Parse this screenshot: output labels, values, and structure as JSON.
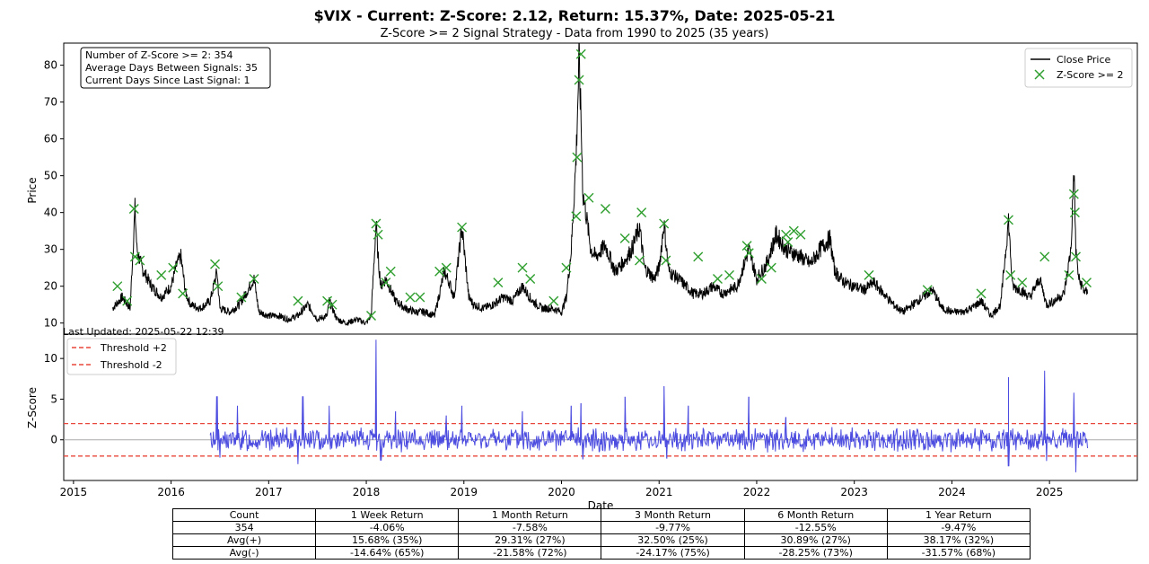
{
  "title": "$VIX - Current: Z-Score: 2.12, Return: 15.37%, Date: 2025-05-21",
  "subtitle": "Z-Score >= 2 Signal Strategy - Data from 1990 to 2025 (35 years)",
  "stats_box": [
    "Number of Z-Score >= 2: 354",
    "Average Days Between Signals: 35",
    "Current Days Since Last Signal: 1"
  ],
  "last_updated": "Last Updated: 2025-05-22 12:39",
  "chart_data": [
    {
      "type": "line",
      "ylabel": "Price",
      "ylim": [
        7,
        86
      ],
      "yticks": [
        10,
        20,
        30,
        40,
        50,
        60,
        70,
        80
      ],
      "x_range": [
        2014.9,
        2025.9
      ],
      "legend": {
        "placement": "top-right",
        "entries": [
          "Close Price",
          "Z-Score >= 2"
        ]
      },
      "series": [
        {
          "name": "Close Price",
          "color": "#000000",
          "x": [
            2015.4,
            2015.5,
            2015.58,
            2015.63,
            2015.65,
            2015.7,
            2015.8,
            2015.9,
            2016.0,
            2016.06,
            2016.1,
            2016.15,
            2016.2,
            2016.3,
            2016.4,
            2016.47,
            2016.5,
            2016.6,
            2016.7,
            2016.85,
            2016.9,
            2017.0,
            2017.1,
            2017.2,
            2017.3,
            2017.4,
            2017.5,
            2017.6,
            2017.62,
            2017.7,
            2017.8,
            2017.9,
            2018.0,
            2018.05,
            2018.1,
            2018.12,
            2018.15,
            2018.2,
            2018.3,
            2018.4,
            2018.5,
            2018.6,
            2018.7,
            2018.8,
            2018.85,
            2018.9,
            2018.98,
            2019.05,
            2019.1,
            2019.2,
            2019.3,
            2019.4,
            2019.5,
            2019.6,
            2019.7,
            2019.8,
            2019.9,
            2020.0,
            2020.05,
            2020.1,
            2020.15,
            2020.18,
            2020.2,
            2020.22,
            2020.25,
            2020.3,
            2020.35,
            2020.45,
            2020.55,
            2020.65,
            2020.72,
            2020.8,
            2020.85,
            2020.95,
            2021.0,
            2021.05,
            2021.1,
            2021.2,
            2021.35,
            2021.45,
            2021.55,
            2021.65,
            2021.8,
            2021.92,
            2022.0,
            2022.1,
            2022.2,
            2022.3,
            2022.45,
            2022.55,
            2022.65,
            2022.75,
            2022.8,
            2022.9,
            2023.0,
            2023.1,
            2023.2,
            2023.3,
            2023.4,
            2023.5,
            2023.6,
            2023.7,
            2023.8,
            2023.9,
            2024.0,
            2024.1,
            2024.2,
            2024.3,
            2024.4,
            2024.5,
            2024.58,
            2024.62,
            2024.7,
            2024.8,
            2024.9,
            2024.97,
            2025.05,
            2025.15,
            2025.22,
            2025.25,
            2025.27,
            2025.3,
            2025.35,
            2025.39
          ],
          "y": [
            14,
            17,
            14,
            41,
            30,
            25,
            20,
            17,
            20,
            26,
            28,
            18,
            15,
            14,
            16,
            24,
            14,
            13,
            15,
            22,
            13,
            12,
            12,
            11,
            12,
            15,
            11,
            12,
            16,
            11,
            10,
            11,
            10,
            12,
            37,
            28,
            20,
            22,
            16,
            14,
            13,
            13,
            12,
            24,
            21,
            17,
            36,
            17,
            15,
            14,
            15,
            17,
            16,
            20,
            16,
            14,
            14,
            13,
            17,
            30,
            55,
            82,
            65,
            45,
            40,
            30,
            28,
            31,
            24,
            27,
            30,
            36,
            25,
            22,
            25,
            37,
            24,
            22,
            18,
            18,
            20,
            18,
            20,
            30,
            22,
            26,
            34,
            30,
            28,
            26,
            30,
            33,
            24,
            21,
            20,
            19,
            21,
            18,
            15,
            13,
            15,
            17,
            19,
            14,
            13,
            13,
            14,
            16,
            12,
            15,
            38,
            20,
            19,
            17,
            22,
            15,
            16,
            18,
            30,
            52,
            30,
            22,
            19,
            18
          ]
        },
        {
          "name": "Z-Score >= 2",
          "color": "#2e9e2e",
          "x": [
            2015.45,
            2015.55,
            2015.62,
            2015.63,
            2015.68,
            2015.9,
            2016.02,
            2016.12,
            2016.45,
            2016.48,
            2016.72,
            2016.85,
            2017.3,
            2017.6,
            2017.65,
            2018.05,
            2018.1,
            2018.12,
            2018.2,
            2018.25,
            2018.45,
            2018.55,
            2018.75,
            2018.82,
            2018.98,
            2019.35,
            2019.6,
            2019.68,
            2019.92,
            2020.05,
            2020.15,
            2020.16,
            2020.18,
            2020.2,
            2020.28,
            2020.45,
            2020.65,
            2020.8,
            2020.82,
            2021.05,
            2021.07,
            2021.4,
            2021.6,
            2021.72,
            2021.9,
            2021.92,
            2022.05,
            2022.15,
            2022.3,
            2022.32,
            2022.38,
            2022.45,
            2023.15,
            2023.75,
            2024.3,
            2024.58,
            2024.6,
            2024.72,
            2024.95,
            2025.2,
            2025.25,
            2025.26,
            2025.27,
            2025.38
          ],
          "y": [
            20,
            16,
            41,
            28,
            27,
            23,
            25,
            18,
            26,
            20,
            17,
            22,
            16,
            16,
            15,
            12,
            37,
            34,
            21,
            24,
            17,
            17,
            24,
            25,
            36,
            21,
            25,
            22,
            16,
            25,
            39,
            55,
            76,
            83,
            44,
            41,
            33,
            27,
            40,
            37,
            27,
            28,
            22,
            23,
            31,
            29,
            22,
            25,
            34,
            32,
            35,
            34,
            23,
            19,
            18,
            38,
            23,
            21,
            28,
            23,
            45,
            40,
            28,
            21
          ]
        }
      ]
    },
    {
      "type": "line",
      "ylabel": "Z-Score",
      "xlabel": "Date",
      "ylim": [
        -5,
        13
      ],
      "yticks": [
        0,
        5,
        10
      ],
      "x_range": [
        2014.9,
        2025.9
      ],
      "xticks": [
        2015,
        2016,
        2017,
        2018,
        2019,
        2020,
        2021,
        2022,
        2023,
        2024,
        2025
      ],
      "legend": {
        "placement": "top-left",
        "entries": [
          "Threshold +2",
          "Threshold -2"
        ]
      },
      "thresholds": [
        2,
        -2
      ],
      "series": [
        {
          "name": "Z-Score",
          "color": "#4c4ce0",
          "x_start": 2016.4,
          "x_end": 2025.39,
          "spikes": [
            {
              "x": 2016.47,
              "y": 5.3
            },
            {
              "x": 2016.68,
              "y": 4.2
            },
            {
              "x": 2017.35,
              "y": 5.3
            },
            {
              "x": 2017.62,
              "y": 4.2
            },
            {
              "x": 2018.1,
              "y": 12.3
            },
            {
              "x": 2018.3,
              "y": 3.5
            },
            {
              "x": 2018.82,
              "y": 3.0
            },
            {
              "x": 2018.98,
              "y": 4.2
            },
            {
              "x": 2019.6,
              "y": 3.5
            },
            {
              "x": 2020.1,
              "y": 4.2
            },
            {
              "x": 2020.2,
              "y": 4.5
            },
            {
              "x": 2020.65,
              "y": 5.3
            },
            {
              "x": 2021.05,
              "y": 6.6
            },
            {
              "x": 2021.3,
              "y": 4.2
            },
            {
              "x": 2021.92,
              "y": 5.3
            },
            {
              "x": 2022.3,
              "y": 2.8
            },
            {
              "x": 2024.58,
              "y": 7.7
            },
            {
              "x": 2024.95,
              "y": 8.5
            },
            {
              "x": 2025.25,
              "y": 5.8
            }
          ],
          "dips": [
            {
              "x": 2016.5,
              "y": -2.2
            },
            {
              "x": 2017.3,
              "y": -3.0
            },
            {
              "x": 2018.15,
              "y": -2.5
            },
            {
              "x": 2020.22,
              "y": -2.4
            },
            {
              "x": 2021.08,
              "y": -2.3
            },
            {
              "x": 2024.58,
              "y": -3.2
            },
            {
              "x": 2024.97,
              "y": -2.6
            },
            {
              "x": 2025.27,
              "y": -4.0
            }
          ]
        }
      ]
    },
    {
      "type": "table",
      "rows": [
        [
          "Count",
          "1 Week Return",
          "1 Month Return",
          "3 Month Return",
          "6 Month Return",
          "1 Year Return"
        ],
        [
          "354",
          "-4.06%",
          "-7.58%",
          "-9.77%",
          "-12.55%",
          "-9.47%"
        ],
        [
          "Avg(+)",
          "15.68% (35%)",
          "29.31% (27%)",
          "32.50% (25%)",
          "30.89% (27%)",
          "38.17% (32%)"
        ],
        [
          "Avg(-)",
          "-14.64% (65%)",
          "-21.58% (72%)",
          "-24.17% (75%)",
          "-28.25% (73%)",
          "-31.57% (68%)"
        ]
      ]
    }
  ]
}
